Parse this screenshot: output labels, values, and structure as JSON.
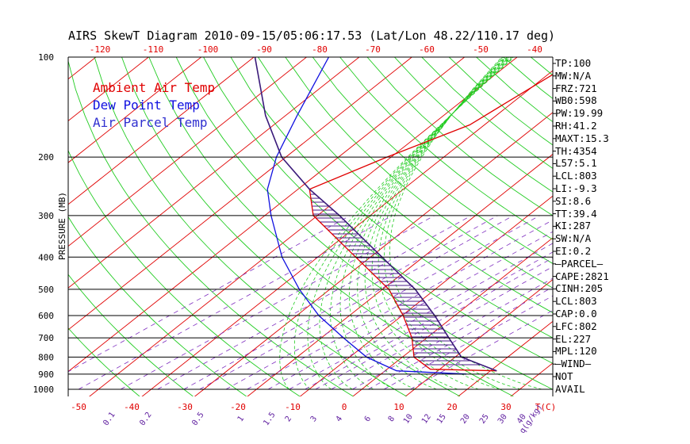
{
  "title": "AIRS SkewT Diagram 2010-09-15/05:06:17.53 (Lat/Lon 48.22/110.17 deg)",
  "legend": [
    {
      "label": "Ambient Air Temp",
      "color": "#e00000"
    },
    {
      "label": "Dew Point Temp",
      "color": "#1010e0"
    },
    {
      "label": "Air Parcel Temp",
      "color": "#3030d0"
    }
  ],
  "stats": [
    "TP:100",
    "MW:N/A",
    "FRZ:721",
    "WB0:598",
    "PW:19.99",
    "RH:41.2",
    "MAXT:15.3",
    "TH:4354",
    "L57:5.1",
    "LCL:803",
    "LI:-9.3",
    "SI:8.6",
    "TT:39.4",
    "KI:287",
    "SW:N/A",
    "EI:0.2",
    "–PARCEL–",
    "CAPE:2821",
    "CINH:205",
    "LCL:803",
    "CAP:0.0",
    "LFC:802",
    "EL:227",
    "MPL:120",
    "–WIND–",
    "NOT",
    "AVAIL"
  ],
  "chart_data": {
    "type": "line",
    "subtype": "skew-t log-p",
    "ylabel": "PRESSURE (MB)",
    "pressure_levels": [
      100,
      200,
      300,
      400,
      500,
      600,
      700,
      800,
      900,
      1000
    ],
    "top_temp_ticks": [
      "-120",
      "-110",
      "-100",
      "-90",
      "-80",
      "-70",
      "-60",
      "-50",
      "-40"
    ],
    "bottom_temp_ticks": [
      "-50",
      "-40",
      "-30",
      "-20",
      "-10",
      "0",
      "10",
      "20",
      "30",
      "T(C)"
    ],
    "mixing_ratio_ticks": [
      "0.1",
      "0.2",
      "0.5",
      "1",
      "1.5",
      "2",
      "3",
      "4",
      "6",
      "8",
      "10",
      "12",
      "15",
      "20",
      "25",
      "30",
      "40",
      "q(g/kg)"
    ],
    "series": [
      {
        "name": "Ambient Air Temp",
        "color": "#e00000",
        "points": [
          [
            100,
            -34
          ],
          [
            160,
            -39
          ],
          [
            200,
            -47
          ],
          [
            250,
            -54
          ],
          [
            300,
            -47
          ],
          [
            400,
            -29
          ],
          [
            500,
            -15
          ],
          [
            600,
            -6
          ],
          [
            700,
            1
          ],
          [
            800,
            6
          ],
          [
            870,
            12
          ],
          [
            880,
            25
          ]
        ]
      },
      {
        "name": "Dew Point Temp",
        "color": "#1010e0",
        "points": [
          [
            100,
            -82
          ],
          [
            150,
            -74
          ],
          [
            200,
            -68
          ],
          [
            250,
            -62
          ],
          [
            300,
            -55
          ],
          [
            400,
            -43
          ],
          [
            500,
            -32
          ],
          [
            600,
            -22
          ],
          [
            700,
            -12
          ],
          [
            800,
            -3
          ],
          [
            880,
            6
          ],
          [
            900,
            20
          ]
        ]
      },
      {
        "name": "Air Parcel Temp",
        "color": "#3030d0",
        "points": [
          [
            100,
            -96
          ],
          [
            150,
            -80
          ],
          [
            200,
            -67
          ],
          [
            250,
            -54
          ],
          [
            300,
            -42
          ],
          [
            400,
            -24
          ],
          [
            500,
            -10
          ],
          [
            600,
            0
          ],
          [
            700,
            8
          ],
          [
            800,
            15
          ],
          [
            880,
            25
          ]
        ]
      }
    ]
  }
}
